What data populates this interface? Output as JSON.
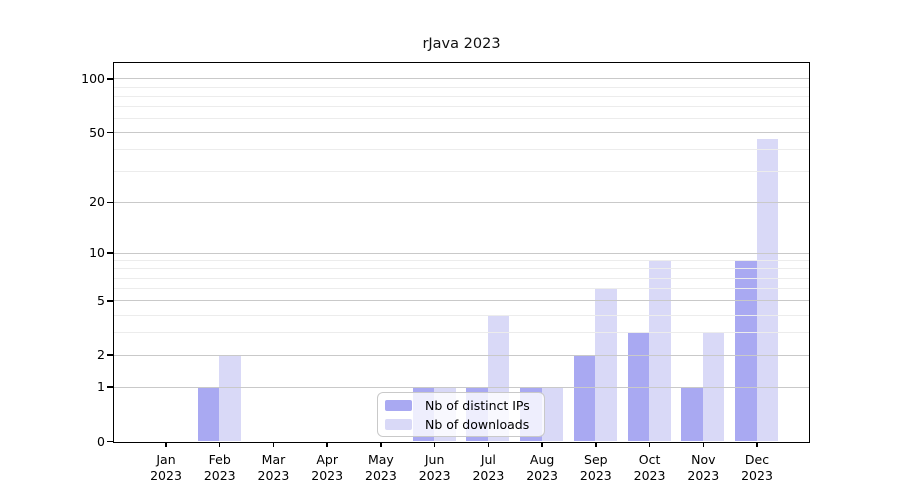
{
  "title": "rJava 2023",
  "chart_data": {
    "type": "bar",
    "title": "rJava 2023",
    "categories": [
      "Jan",
      "Feb",
      "Mar",
      "Apr",
      "May",
      "Jun",
      "Jul",
      "Aug",
      "Sep",
      "Oct",
      "Nov",
      "Dec"
    ],
    "x_label_line2": "2023",
    "series": [
      {
        "name": "Nb of distinct IPs",
        "color": "#a9a9f2",
        "values": [
          0,
          1,
          0,
          0,
          0,
          1,
          1,
          1,
          2,
          3,
          1,
          9
        ]
      },
      {
        "name": "Nb of downloads",
        "color": "#d9d9f7",
        "values": [
          0,
          2,
          0,
          0,
          0,
          1,
          4,
          1,
          6,
          9,
          3,
          46
        ]
      }
    ],
    "y_scale": "log1p",
    "y_ticks": [
      0,
      1,
      2,
      5,
      10,
      20,
      50,
      100
    ],
    "y_minor_ticks": [
      3,
      4,
      6,
      7,
      8,
      9,
      30,
      40,
      60,
      70,
      80,
      90
    ],
    "ylim": [
      0,
      122
    ],
    "grid": true,
    "legend_position": "bottom-center",
    "colors": {
      "major_grid": "#c9c9c9",
      "minor_grid": "#ececec",
      "axis": "#000000",
      "text": "#000000",
      "background": "#ffffff"
    }
  }
}
